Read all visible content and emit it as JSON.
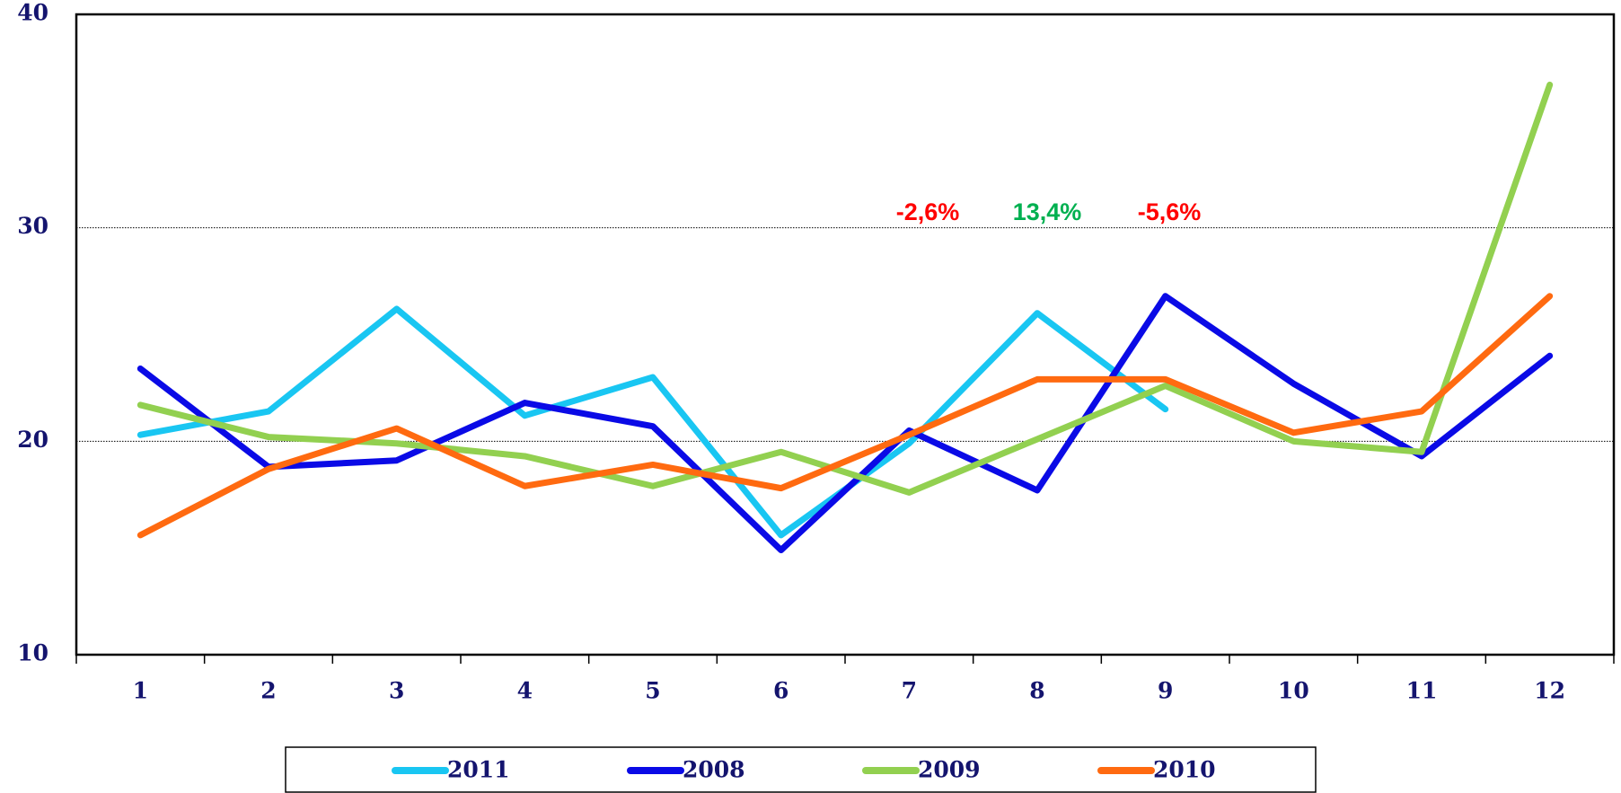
{
  "chart_data": {
    "type": "line",
    "categories": [
      "1",
      "2",
      "3",
      "4",
      "5",
      "6",
      "7",
      "8",
      "9",
      "10",
      "11",
      "12"
    ],
    "series": [
      {
        "name": "2011",
        "color": "#19c6f2",
        "values": [
          20.3,
          21.4,
          26.2,
          21.2,
          23.0,
          15.6,
          19.9,
          26.0,
          21.5,
          null,
          null,
          null
        ]
      },
      {
        "name": "2008",
        "color": "#0a0ae6",
        "values": [
          23.4,
          18.8,
          19.1,
          21.8,
          20.7,
          14.9,
          20.5,
          17.7,
          26.8,
          22.7,
          19.3,
          24.0
        ]
      },
      {
        "name": "2009",
        "color": "#92d050",
        "values": [
          21.7,
          20.2,
          19.9,
          19.3,
          17.9,
          19.5,
          17.6,
          20.1,
          22.6,
          20.0,
          19.5,
          36.7
        ]
      },
      {
        "name": "2010",
        "color": "#ff6a10",
        "values": [
          15.6,
          18.7,
          20.6,
          17.9,
          18.9,
          17.8,
          20.3,
          22.9,
          22.9,
          20.4,
          21.4,
          26.8
        ]
      }
    ],
    "ylim": [
      10,
      40
    ],
    "yticks": [
      10,
      20,
      30,
      40
    ],
    "grid": true,
    "annotations": [
      {
        "text": "-2,6%",
        "color": "#ff0000"
      },
      {
        "text": "13,4%",
        "color": "#00b050"
      },
      {
        "text": "-5,6%",
        "color": "#ff0000"
      }
    ]
  }
}
